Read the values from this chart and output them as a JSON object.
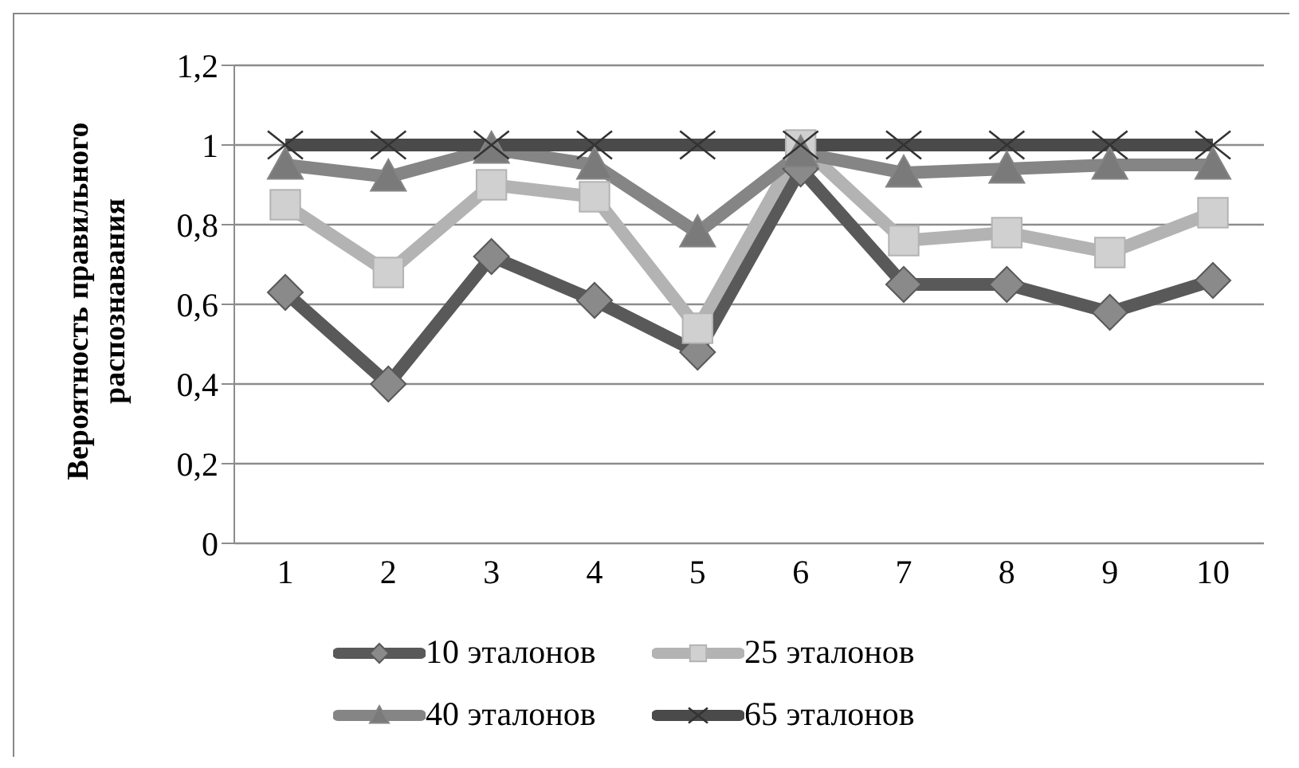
{
  "chart_data": {
    "type": "line",
    "ylabel": "Вероятность правильного\nраспознавания",
    "categories": [
      "1",
      "2",
      "3",
      "4",
      "5",
      "6",
      "7",
      "8",
      "9",
      "10"
    ],
    "ylim": [
      0,
      1.2
    ],
    "yticks": [
      0,
      {
        "value": 0.2,
        "label": "0,2"
      },
      {
        "value": 0.4,
        "label": "0,4"
      },
      {
        "value": 0.6,
        "label": "0,6"
      },
      {
        "value": 0.8,
        "label": "0,8"
      },
      1,
      {
        "value": 1.2,
        "label": "1,2"
      }
    ],
    "grid": "y",
    "legend": "bottom",
    "line_style": "solid",
    "series": [
      {
        "name": "10 эталонов",
        "color": "#595959",
        "marker": "diamond",
        "values": [
          0.63,
          0.4,
          0.72,
          0.61,
          0.48,
          0.94,
          0.65,
          0.65,
          0.58,
          0.66
        ]
      },
      {
        "name": "25 эталонов",
        "color": "#b3b3b3",
        "marker": "square",
        "values": [
          0.85,
          0.68,
          0.9,
          0.87,
          0.54,
          1.0,
          0.76,
          0.78,
          0.73,
          0.83
        ]
      },
      {
        "name": "40 эталонов",
        "color": "#858585",
        "marker": "triangle",
        "values": [
          0.95,
          0.92,
          0.99,
          0.95,
          0.78,
          0.98,
          0.93,
          0.94,
          0.95,
          0.95
        ]
      },
      {
        "name": "65 эталонов",
        "color": "#4a4a4a",
        "marker": "cross",
        "values": [
          1,
          1,
          1,
          1,
          1,
          1,
          1,
          1,
          1,
          1
        ]
      }
    ]
  }
}
